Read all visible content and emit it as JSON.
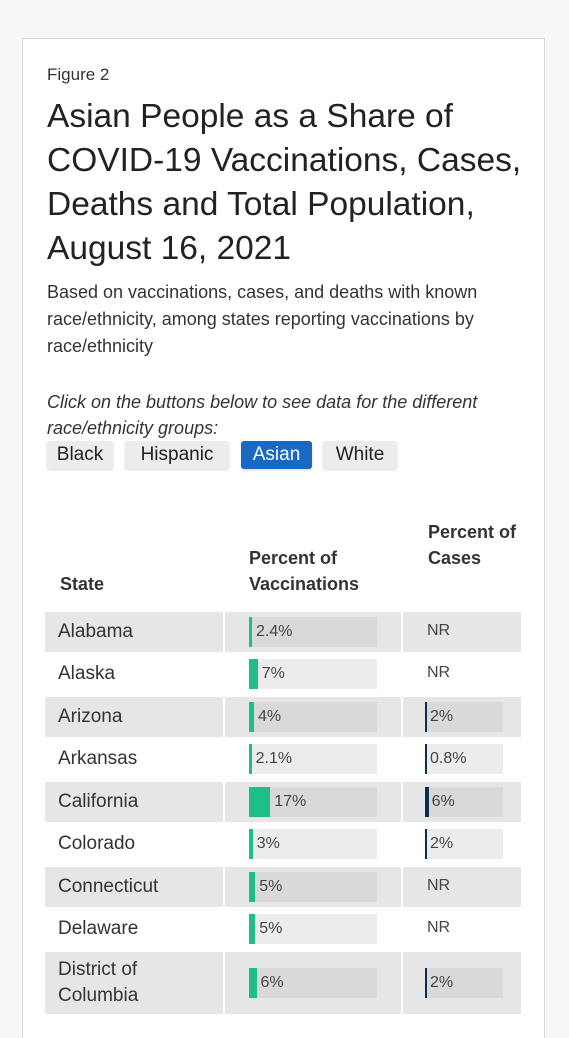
{
  "figure_label": "Figure 2",
  "title": "Asian People as a Share of COVID-19 Vaccinations, Cases, Deaths and Total Population, August 16, 2021",
  "subtitle": "Based on vaccinations, cases, and deaths with known race/ethnicity, among states reporting vaccinations by race/ethnicity",
  "instructions": "Click on the buttons below to see data for the different race/ethnicity groups:",
  "buttons": [
    "Black",
    "Hispanic",
    "Asian",
    "White"
  ],
  "active_button": "Asian",
  "colors": {
    "vaccination_bar": "#1dbe87",
    "case_bar": "#0d2d4f",
    "active_button": "#1769c4"
  },
  "chart_data": {
    "type": "table",
    "columns": [
      "State",
      "Percent of Vaccinations",
      "Percent of Cases"
    ],
    "max_value": 100,
    "rows": [
      {
        "state": "Alabama",
        "vaccinations": 2.4,
        "vaccinations_label": "2.4%",
        "cases": null,
        "cases_label": "NR"
      },
      {
        "state": "Alaska",
        "vaccinations": 7,
        "vaccinations_label": "7%",
        "cases": null,
        "cases_label": "NR"
      },
      {
        "state": "Arizona",
        "vaccinations": 4,
        "vaccinations_label": "4%",
        "cases": 2,
        "cases_label": "2%"
      },
      {
        "state": "Arkansas",
        "vaccinations": 2.1,
        "vaccinations_label": "2.1%",
        "cases": 0.8,
        "cases_label": "0.8%"
      },
      {
        "state": "California",
        "vaccinations": 17,
        "vaccinations_label": "17%",
        "cases": 6,
        "cases_label": "6%"
      },
      {
        "state": "Colorado",
        "vaccinations": 3,
        "vaccinations_label": "3%",
        "cases": 2,
        "cases_label": "2%"
      },
      {
        "state": "Connecticut",
        "vaccinations": 5,
        "vaccinations_label": "5%",
        "cases": null,
        "cases_label": "NR"
      },
      {
        "state": "Delaware",
        "vaccinations": 5,
        "vaccinations_label": "5%",
        "cases": null,
        "cases_label": "NR"
      },
      {
        "state": "District of Columbia",
        "vaccinations": 6,
        "vaccinations_label": "6%",
        "cases": 2,
        "cases_label": "2%"
      }
    ]
  }
}
